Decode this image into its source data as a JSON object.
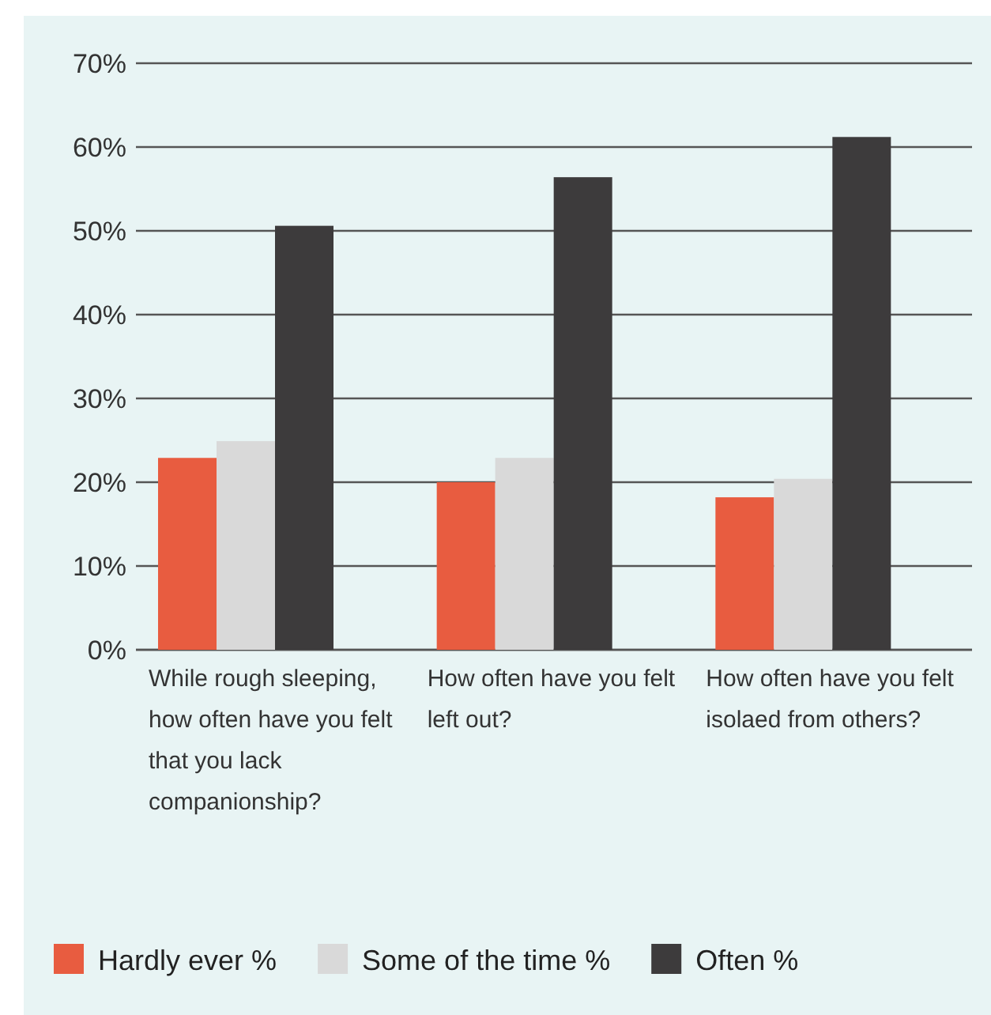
{
  "chart_data": {
    "type": "bar",
    "categories": [
      "While rough sleeping, how often have you felt that you lack companionship?",
      "How often have you felt left out?",
      "How often have you felt isolaed from others?"
    ],
    "series": [
      {
        "name": "Hardly ever %",
        "color": "#e85c40",
        "values": [
          22.9,
          20.0,
          18.2
        ]
      },
      {
        "name": "Some of the time %",
        "color": "#d9d9d9",
        "values": [
          24.9,
          22.9,
          20.4
        ]
      },
      {
        "name": "Often %",
        "color": "#3d3b3c",
        "values": [
          50.6,
          56.4,
          61.2
        ]
      }
    ],
    "ylim": [
      0,
      70
    ],
    "yticks": [
      {
        "value": 0,
        "label": "0%"
      },
      {
        "value": 10,
        "label": "10%"
      },
      {
        "value": 20,
        "label": "20%"
      },
      {
        "value": 30,
        "label": "30%"
      },
      {
        "value": 40,
        "label": "40%"
      },
      {
        "value": 50,
        "label": "50%"
      },
      {
        "value": 60,
        "label": "60%"
      },
      {
        "value": 70,
        "label": "70%"
      }
    ],
    "grid": "y",
    "legend": "bottom"
  }
}
